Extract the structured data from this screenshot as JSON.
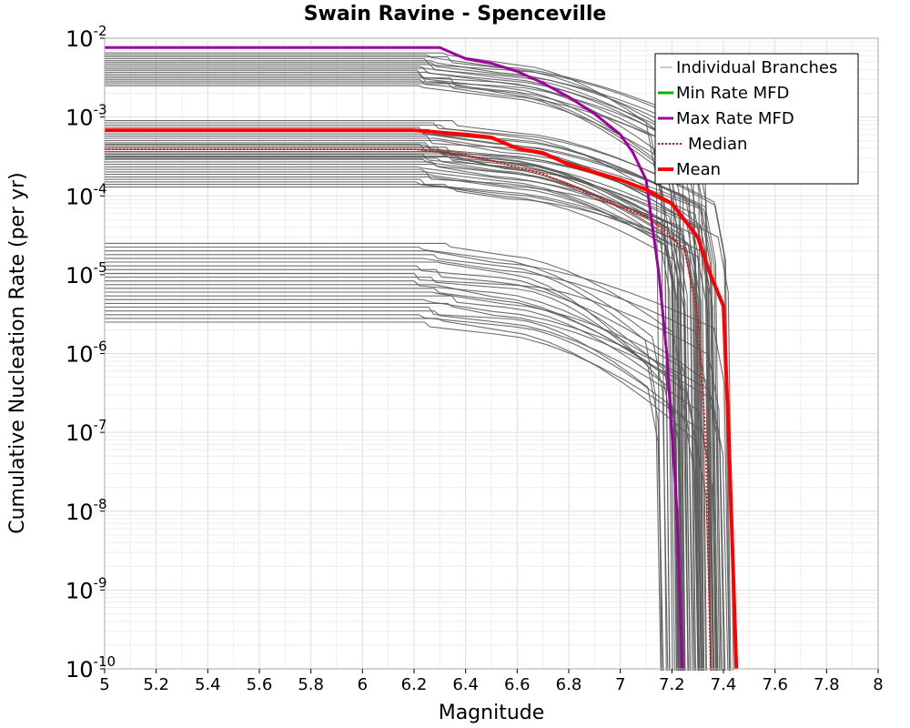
{
  "chart_data": {
    "type": "line",
    "title": "Swain Ravine - Spenceville",
    "xlabel": "Magnitude",
    "ylabel": "Cumulative Nucleation Rate (per yr)",
    "xlim": [
      5,
      8
    ],
    "ylim": [
      1e-10,
      0.01
    ],
    "yscale": "log",
    "grid": true,
    "legend_position": "top-right",
    "x_ticks": [
      "5",
      "5.2",
      "5.4",
      "5.6",
      "5.8",
      "6",
      "6.2",
      "6.4",
      "6.6",
      "6.8",
      "7",
      "7.2",
      "7.4",
      "7.6",
      "7.8",
      "8"
    ],
    "y_ticks": [
      {
        "base": "10",
        "exp": "-2",
        "value": 0.01
      },
      {
        "base": "10",
        "exp": "-3",
        "value": 0.001
      },
      {
        "base": "10",
        "exp": "-4",
        "value": 0.0001
      },
      {
        "base": "10",
        "exp": "-5",
        "value": 1e-05
      },
      {
        "base": "10",
        "exp": "-6",
        "value": 1e-06
      },
      {
        "base": "10",
        "exp": "-7",
        "value": 1e-07
      },
      {
        "base": "10",
        "exp": "-8",
        "value": 1e-08
      },
      {
        "base": "10",
        "exp": "-9",
        "value": 1e-09
      },
      {
        "base": "10",
        "exp": "-10",
        "value": 1e-10
      }
    ],
    "legend": [
      "Individual Branches",
      "Min Rate MFD",
      "Max Rate MFD",
      "Median",
      "Mean"
    ],
    "branch_groups": [
      {
        "plateau_min": 0.0025,
        "plateau_max": 0.0065,
        "count": 18,
        "kink": 6.2,
        "drop_start": 6.5,
        "fall_decades": 0.8,
        "cut_min": 7.14,
        "cut_max": 7.36
      },
      {
        "plateau_min": 0.0003,
        "plateau_max": 0.0009,
        "count": 18,
        "kink": 6.2,
        "drop_start": 6.5,
        "fall_decades": 0.9,
        "cut_min": 7.3,
        "cut_max": 7.44
      },
      {
        "plateau_min": 0.00013,
        "plateau_max": 0.00045,
        "count": 18,
        "kink": 6.2,
        "drop_start": 6.5,
        "fall_decades": 0.7,
        "cut_min": 7.2,
        "cut_max": 7.38
      },
      {
        "plateau_min": 2.5e-06,
        "plateau_max": 2.5e-05,
        "count": 22,
        "kink": 6.2,
        "drop_start": 6.5,
        "fall_decades": 1.1,
        "cut_min": 7.14,
        "cut_max": 7.44
      }
    ],
    "series": [
      {
        "name": "Max Rate MFD",
        "color": "#a000a0",
        "style": "solid",
        "x": [
          5.0,
          6.3,
          6.4,
          6.5,
          6.6,
          6.7,
          6.8,
          6.9,
          7.0,
          7.05,
          7.1,
          7.15,
          7.18,
          7.2,
          7.22,
          7.24
        ],
        "y": [
          0.0076,
          0.0076,
          0.0055,
          0.0048,
          0.0038,
          0.0027,
          0.0018,
          0.0011,
          0.0006,
          0.00035,
          0.00016,
          1e-05,
          1e-06,
          1e-07,
          1e-08,
          1e-10
        ]
      },
      {
        "name": "Median",
        "color": "#ff0000",
        "style": "dotted",
        "x": [
          5.0,
          6.2,
          6.4,
          6.5,
          6.6,
          6.7,
          6.8,
          6.9,
          7.0,
          7.1,
          7.2,
          7.25,
          7.3,
          7.33,
          7.35
        ],
        "y": [
          0.00039,
          0.00039,
          0.00033,
          0.00028,
          0.00023,
          0.00019,
          0.00014,
          0.0001,
          7.2e-05,
          5.5e-05,
          3e-05,
          2e-05,
          3e-06,
          1e-07,
          1e-10
        ]
      },
      {
        "name": "Mean",
        "color": "#ff0000",
        "style": "solid",
        "x": [
          5.0,
          6.2,
          6.4,
          6.5,
          6.6,
          6.7,
          6.8,
          6.9,
          7.0,
          7.1,
          7.2,
          7.3,
          7.35,
          7.4,
          7.42,
          7.45
        ],
        "y": [
          0.00068,
          0.00068,
          0.0006,
          0.00055,
          0.0004,
          0.00035,
          0.00025,
          0.0002,
          0.00016,
          0.00012,
          8e-05,
          3e-05,
          1e-05,
          4e-06,
          1e-07,
          1e-10
        ]
      }
    ]
  }
}
